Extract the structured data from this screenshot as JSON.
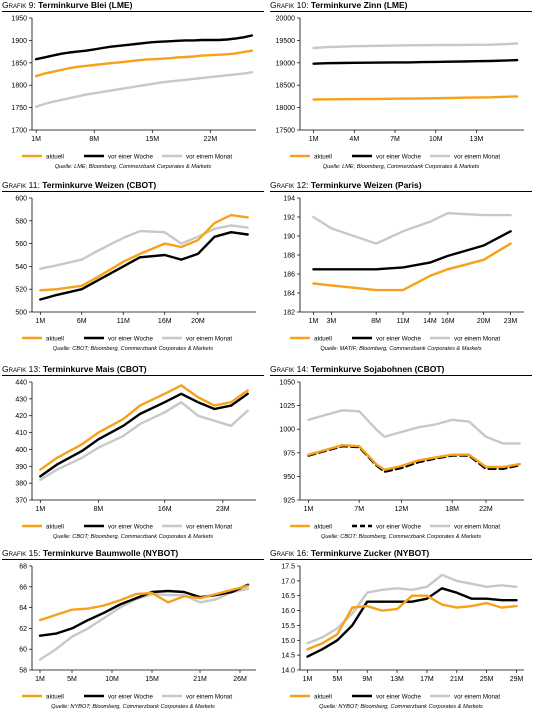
{
  "colors": {
    "aktuell": "#f7a11a",
    "woche": "#000000",
    "monat": "#c8c8c8"
  },
  "panels": [
    {
      "grafik": "Grafik 9",
      "title": "Terminkurve Blei (LME)",
      "source": "Quelle: LME; Bloomberg, Commerzbank Corporates & Markets",
      "chart_data": {
        "type": "line",
        "x": [
          1,
          2,
          3,
          4,
          5,
          6,
          7,
          8,
          9,
          10,
          11,
          12,
          13,
          14,
          15,
          16,
          17,
          18,
          19,
          20,
          21,
          22,
          23,
          24,
          25,
          26,
          27
        ],
        "xticks": [
          {
            "x": 1,
            "label": "1M"
          },
          {
            "x": 8,
            "label": "8M"
          },
          {
            "x": 15,
            "label": "15M"
          },
          {
            "x": 22,
            "label": "22M"
          }
        ],
        "xlim": [
          0.5,
          27.5
        ],
        "ylim": [
          1700,
          1950
        ],
        "yticks": [
          1700,
          1750,
          1800,
          1850,
          1900,
          1950
        ],
        "ydec": 0,
        "legend_cols": 3,
        "series": [
          {
            "name": "aktuell",
            "style": "solid",
            "values": [
              1820,
              1826,
              1830,
              1834,
              1838,
              1841,
              1843,
              1845,
              1847,
              1849,
              1851,
              1853,
              1855,
              1857,
              1858,
              1859,
              1860,
              1862,
              1863,
              1864,
              1866,
              1867,
              1868,
              1869,
              1871,
              1874,
              1877
            ]
          },
          {
            "name": "vor einer Woche",
            "style": "solid",
            "values": [
              1858,
              1862,
              1866,
              1870,
              1873,
              1875,
              1877,
              1880,
              1883,
              1886,
              1888,
              1890,
              1892,
              1894,
              1896,
              1897,
              1898,
              1899,
              1900,
              1900,
              1901,
              1901,
              1901,
              1902,
              1904,
              1907,
              1911
            ]
          },
          {
            "name": "vor einem Monat",
            "style": "solid",
            "values": [
              1752,
              1758,
              1763,
              1767,
              1771,
              1775,
              1779,
              1782,
              1785,
              1788,
              1791,
              1794,
              1797,
              1800,
              1803,
              1806,
              1808,
              1810,
              1812,
              1814,
              1816,
              1818,
              1820,
              1822,
              1824,
              1826,
              1829
            ]
          }
        ]
      }
    },
    {
      "grafik": "Grafik 10",
      "title": "Terminkurve Zinn (LME)",
      "source": "Quelle: LME; Bloomberg, Commerzbank Corporates & Markets",
      "chart_data": {
        "type": "line",
        "x": [
          1,
          2,
          3,
          4,
          5,
          6,
          7,
          8,
          9,
          10,
          11,
          12,
          13,
          14,
          15,
          16
        ],
        "xticks": [
          {
            "x": 1,
            "label": "1M"
          },
          {
            "x": 4,
            "label": "4M"
          },
          {
            "x": 7,
            "label": "7M"
          },
          {
            "x": 10,
            "label": "10M"
          },
          {
            "x": 13,
            "label": "13M"
          }
        ],
        "xlim": [
          0,
          16.5
        ],
        "ylim": [
          17500,
          20000
        ],
        "yticks": [
          17500,
          18000,
          18500,
          19000,
          19500,
          20000
        ],
        "ydec": 0,
        "legend_cols": 3,
        "series": [
          {
            "name": "aktuell",
            "style": "solid",
            "values": [
              18180,
              18185,
              18188,
              18190,
              18192,
              18195,
              18198,
              18200,
              18205,
              18210,
              18215,
              18220,
              18225,
              18230,
              18240,
              18250
            ]
          },
          {
            "name": "vor einer Woche",
            "style": "solid",
            "values": [
              18980,
              18990,
              18995,
              19000,
              19002,
              19005,
              19008,
              19010,
              19015,
              19020,
              19025,
              19030,
              19035,
              19040,
              19048,
              19060
            ]
          },
          {
            "name": "vor einem Monat",
            "style": "solid",
            "values": [
              19330,
              19350,
              19360,
              19370,
              19375,
              19380,
              19385,
              19390,
              19392,
              19395,
              19398,
              19400,
              19402,
              19405,
              19415,
              19430
            ]
          }
        ]
      }
    },
    {
      "grafik": "Grafik 11",
      "title": "Terminkurve Weizen (CBOT)",
      "source": "Quelle: CBOT; Bloomberg, Commerzbank Corporates & Markets",
      "chart_data": {
        "type": "line",
        "x": [
          1,
          3,
          6,
          8,
          11,
          13,
          16,
          18,
          20,
          22,
          24,
          26
        ],
        "xticks": [
          {
            "x": 1,
            "label": "1M"
          },
          {
            "x": 6,
            "label": "6M"
          },
          {
            "x": 11,
            "label": "11M"
          },
          {
            "x": 16,
            "label": "16M"
          },
          {
            "x": 20,
            "label": "20M"
          }
        ],
        "xlim": [
          0,
          27
        ],
        "ylim": [
          500,
          600
        ],
        "yticks": [
          500,
          520,
          540,
          560,
          580,
          600
        ],
        "ydec": 0,
        "legend_cols": 3,
        "series": [
          {
            "name": "aktuell",
            "style": "solid",
            "values": [
              519,
              520,
              523,
              531,
              544,
              551,
              560,
              557,
              563,
              578,
              585,
              583
            ]
          },
          {
            "name": "vor einer Woche",
            "style": "solid",
            "values": [
              511,
              515,
              520,
              528,
              540,
              548,
              550,
              546,
              551,
              566,
              570,
              568
            ]
          },
          {
            "name": "vor einem Monat",
            "style": "solid",
            "values": [
              538,
              541,
              546,
              554,
              565,
              571,
              570,
              560,
              566,
              573,
              576,
              574
            ]
          }
        ]
      }
    },
    {
      "grafik": "Grafik 12",
      "title": "Terminkurve Weizen (Paris)",
      "source": "Quelle: MATIF; Bloomberg, Commerzbank Corporates & Markets",
      "chart_data": {
        "type": "line",
        "x": [
          1,
          3,
          8,
          11,
          14,
          16,
          20,
          23
        ],
        "xticks": [
          {
            "x": 1,
            "label": "1M"
          },
          {
            "x": 3,
            "label": "3M"
          },
          {
            "x": 8,
            "label": "8M"
          },
          {
            "x": 11,
            "label": "11M"
          },
          {
            "x": 14,
            "label": "14M"
          },
          {
            "x": 16,
            "label": "16M"
          },
          {
            "x": 20,
            "label": "20M"
          },
          {
            "x": 23,
            "label": "23M"
          }
        ],
        "xlim": [
          -0.5,
          24.5
        ],
        "ylim": [
          182,
          194
        ],
        "yticks": [
          182,
          184,
          186,
          188,
          190,
          192,
          194
        ],
        "ydec": 0,
        "legend_cols": 3,
        "series": [
          {
            "name": "aktuell",
            "style": "solid",
            "values": [
              185.0,
              184.8,
              184.3,
              184.3,
              185.8,
              186.5,
              187.5,
              189.2
            ]
          },
          {
            "name": "vor einer Woche",
            "style": "solid",
            "values": [
              186.5,
              186.5,
              186.5,
              186.7,
              187.2,
              187.9,
              189.0,
              190.5
            ]
          },
          {
            "name": "vor einem Monat",
            "style": "solid",
            "values": [
              192.0,
              190.8,
              189.2,
              190.5,
              191.5,
              192.4,
              192.2,
              192.2
            ]
          }
        ]
      }
    },
    {
      "grafik": "Grafik 13",
      "title": "Terminkurve Mais (CBOT)",
      "source": "Quelle: CBOT; Bloomberg, Commerzbank Corporates & Markets",
      "chart_data": {
        "type": "line",
        "x": [
          1,
          3,
          6,
          8,
          11,
          13,
          16,
          18,
          20,
          22,
          24,
          26
        ],
        "xticks": [
          {
            "x": 1,
            "label": "1M"
          },
          {
            "x": 8,
            "label": "8M"
          },
          {
            "x": 16,
            "label": "16M"
          },
          {
            "x": 23,
            "label": "23M"
          }
        ],
        "xlim": [
          0,
          27
        ],
        "ylim": [
          370,
          440
        ],
        "yticks": [
          370,
          380,
          390,
          400,
          410,
          420,
          430,
          440
        ],
        "ydec": 0,
        "legend_cols": 3,
        "series": [
          {
            "name": "aktuell",
            "style": "solid",
            "values": [
              388,
              395,
              403,
              410,
              418,
              426,
              433,
              438,
              431,
              426,
              428,
              435
            ]
          },
          {
            "name": "vor einer Woche",
            "style": "solid",
            "values": [
              384,
              391,
              399,
              406,
              414,
              421,
              428,
              433,
              428,
              424,
              426,
              433
            ]
          },
          {
            "name": "vor einem Monat",
            "style": "solid",
            "values": [
              382,
              388,
              395,
              401,
              408,
              415,
              422,
              428,
              420,
              417,
              414,
              423
            ]
          }
        ]
      }
    },
    {
      "grafik": "Grafik 14",
      "title": "Terminkurve Sojabohnen (CBOT)",
      "source": "Quelle: CBOT; Bloomberg, Commerzbank Corporates & Markets",
      "chart_data": {
        "type": "line",
        "x": [
          1,
          3,
          5,
          7,
          9,
          10,
          12,
          14,
          16,
          18,
          20,
          22,
          24,
          26
        ],
        "xticks": [
          {
            "x": 1,
            "label": "1M"
          },
          {
            "x": 7,
            "label": "7M"
          },
          {
            "x": 12,
            "label": "12M"
          },
          {
            "x": 18,
            "label": "18M"
          },
          {
            "x": 22,
            "label": "22M"
          }
        ],
        "xlim": [
          0,
          26.5
        ],
        "ylim": [
          925,
          1050
        ],
        "yticks": [
          925,
          950,
          975,
          1000,
          1025,
          1050
        ],
        "ydec": 0,
        "legend_cols": 3,
        "series": [
          {
            "name": "aktuell",
            "style": "solid",
            "values": [
              973,
              978,
              983,
              982,
              963,
              957,
              961,
              967,
              970,
              973,
              973,
              960,
              960,
              963
            ]
          },
          {
            "name": "vor einer Woche",
            "style": "dashed",
            "values": [
              972,
              977,
              982,
              981,
              962,
              955,
              959,
              965,
              969,
              972,
              972,
              958,
              958,
              962
            ]
          },
          {
            "name": "vor einem Monat",
            "style": "solid",
            "values": [
              1010,
              1015,
              1020,
              1019,
              1000,
              992,
              997,
              1002,
              1005,
              1010,
              1008,
              992,
              985,
              985
            ]
          }
        ]
      }
    },
    {
      "grafik": "Grafik 15",
      "title": "Terminkurve Baumwolle (NYBOT)",
      "source": "Quelle: NYBOT; Bloomberg, Commerzbank Corporates & Markets",
      "chart_data": {
        "type": "line",
        "x": [
          1,
          3,
          5,
          7,
          9,
          11,
          13,
          15,
          17,
          19,
          21,
          23,
          25,
          27
        ],
        "xticks": [
          {
            "x": 1,
            "label": "1M"
          },
          {
            "x": 5,
            "label": "5M"
          },
          {
            "x": 10,
            "label": "10M"
          },
          {
            "x": 15,
            "label": "15M"
          },
          {
            "x": 21,
            "label": "21M"
          },
          {
            "x": 26,
            "label": "26M"
          }
        ],
        "xlim": [
          0,
          28
        ],
        "ylim": [
          58,
          68
        ],
        "yticks": [
          58,
          60,
          62,
          64,
          66,
          68
        ],
        "ydec": 0,
        "legend_cols": 3,
        "series": [
          {
            "name": "aktuell",
            "style": "solid",
            "values": [
              62.8,
              63.3,
              63.8,
              63.9,
              64.2,
              64.7,
              65.3,
              65.4,
              64.5,
              65.1,
              64.9,
              65.3,
              65.7,
              66.1
            ]
          },
          {
            "name": "vor einer Woche",
            "style": "solid",
            "values": [
              61.3,
              61.5,
              62.0,
              62.8,
              63.5,
              64.3,
              64.9,
              65.5,
              65.6,
              65.5,
              65.0,
              65.2,
              65.5,
              66.2
            ]
          },
          {
            "name": "vor einem Monat",
            "style": "solid",
            "values": [
              59.0,
              60.0,
              61.2,
              62.0,
              63.0,
              64.0,
              64.8,
              65.3,
              65.2,
              65.2,
              64.5,
              64.8,
              65.5,
              65.8
            ]
          }
        ]
      }
    },
    {
      "grafik": "Grafik 16",
      "title": "Terminkurve Zucker (NYBOT)",
      "source": "Quelle: NYBOT; Bloomberg, Commerzbank Corporates & Markets",
      "chart_data": {
        "type": "line",
        "x": [
          1,
          3,
          5,
          7,
          9,
          11,
          13,
          15,
          17,
          19,
          21,
          23,
          25,
          27,
          29
        ],
        "xticks": [
          {
            "x": 1,
            "label": "1M"
          },
          {
            "x": 5,
            "label": "5M"
          },
          {
            "x": 9,
            "label": "9M"
          },
          {
            "x": 13,
            "label": "13M"
          },
          {
            "x": 17,
            "label": "17M"
          },
          {
            "x": 21,
            "label": "21M"
          },
          {
            "x": 25,
            "label": "25M"
          },
          {
            "x": 29,
            "label": "29M"
          }
        ],
        "xlim": [
          0,
          30
        ],
        "ylim": [
          14.0,
          17.5
        ],
        "yticks": [
          14.0,
          14.5,
          15.0,
          15.5,
          16.0,
          16.5,
          17.0,
          17.5
        ],
        "ydec": 1,
        "legend_cols": 3,
        "series": [
          {
            "name": "aktuell",
            "style": "solid",
            "values": [
              14.7,
              14.9,
              15.2,
              16.1,
              16.15,
              16.0,
              16.05,
              16.5,
              16.5,
              16.2,
              16.1,
              16.15,
              16.25,
              16.1,
              16.15
            ]
          },
          {
            "name": "vor einer Woche",
            "style": "solid",
            "values": [
              14.45,
              14.7,
              15.0,
              15.5,
              16.3,
              16.3,
              16.3,
              16.3,
              16.4,
              16.75,
              16.6,
              16.4,
              16.4,
              16.35,
              16.35
            ]
          },
          {
            "name": "vor einem Monat",
            "style": "solid",
            "values": [
              14.9,
              15.1,
              15.4,
              15.9,
              16.6,
              16.7,
              16.75,
              16.7,
              16.8,
              17.2,
              17.0,
              16.9,
              16.8,
              16.85,
              16.8
            ]
          }
        ]
      }
    }
  ]
}
